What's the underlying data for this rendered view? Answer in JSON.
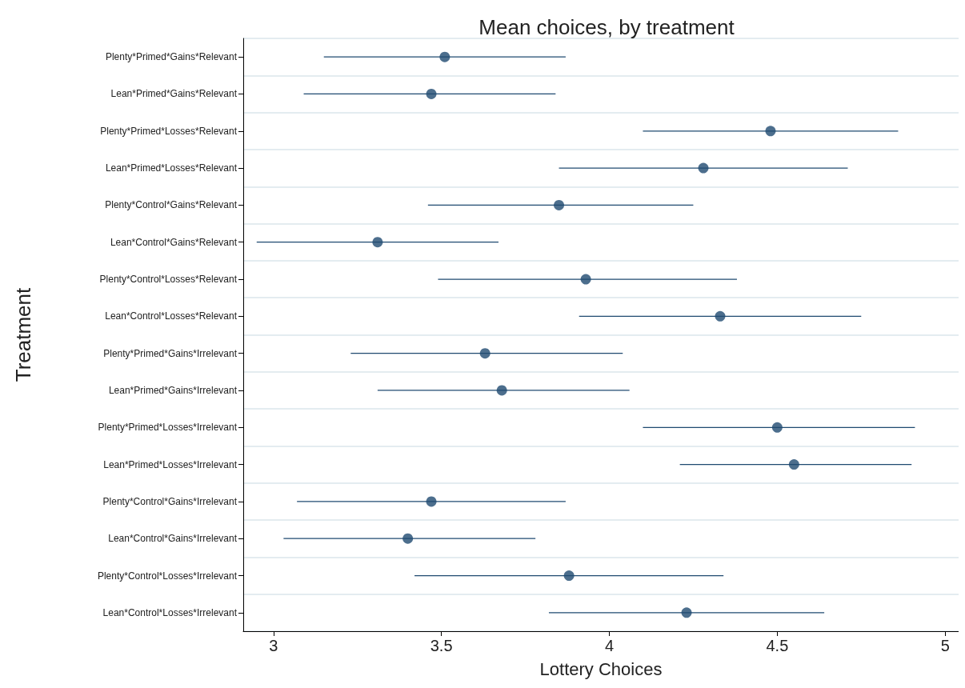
{
  "chart_data": {
    "type": "scatter",
    "title": "Mean choices, by treatment",
    "xlabel": "Lottery Choices",
    "ylabel": "Treatment",
    "orientation": "horizontal",
    "categories": [
      "Plenty*Primed*Gains*Relevant",
      "Lean*Primed*Gains*Relevant",
      "Plenty*Primed*Losses*Relevant",
      "Lean*Primed*Losses*Relevant",
      "Plenty*Control*Gains*Relevant",
      "Lean*Control*Gains*Relevant",
      "Plenty*Control*Losses*Relevant",
      "Lean*Control*Losses*Relevant",
      "Plenty*Primed*Gains*Irrelevant",
      "Lean*Primed*Gains*Irrelevant",
      "Plenty*Primed*Losses*Irrelevant",
      "Lean*Primed*Losses*Irrelevant",
      "Plenty*Control*Gains*Irrelevant",
      "Lean*Control*Gains*Irrelevant",
      "Plenty*Control*Losses*Irrelevant",
      "Lean*Control*Losses*Irrelevant"
    ],
    "values": [
      3.51,
      3.47,
      4.48,
      4.28,
      3.85,
      3.31,
      3.93,
      4.33,
      3.63,
      3.68,
      4.5,
      4.55,
      3.47,
      3.4,
      3.88,
      4.23
    ],
    "errors": [
      [
        3.15,
        3.87
      ],
      [
        3.09,
        3.84
      ],
      [
        4.1,
        4.86
      ],
      [
        3.85,
        4.71
      ],
      [
        3.46,
        4.25
      ],
      [
        2.95,
        3.67
      ],
      [
        3.49,
        4.38
      ],
      [
        3.91,
        4.75
      ],
      [
        3.23,
        4.04
      ],
      [
        3.31,
        4.06
      ],
      [
        4.1,
        4.91
      ],
      [
        4.21,
        4.9
      ],
      [
        3.07,
        3.87
      ],
      [
        3.03,
        3.78
      ],
      [
        3.42,
        4.34
      ],
      [
        3.82,
        4.64
      ]
    ],
    "color": "#1f4a70",
    "xlim": [
      2.91,
      5.04
    ],
    "xticks": [
      3,
      3.5,
      4,
      4.5,
      5
    ],
    "grid": "y",
    "marker": "circle"
  }
}
